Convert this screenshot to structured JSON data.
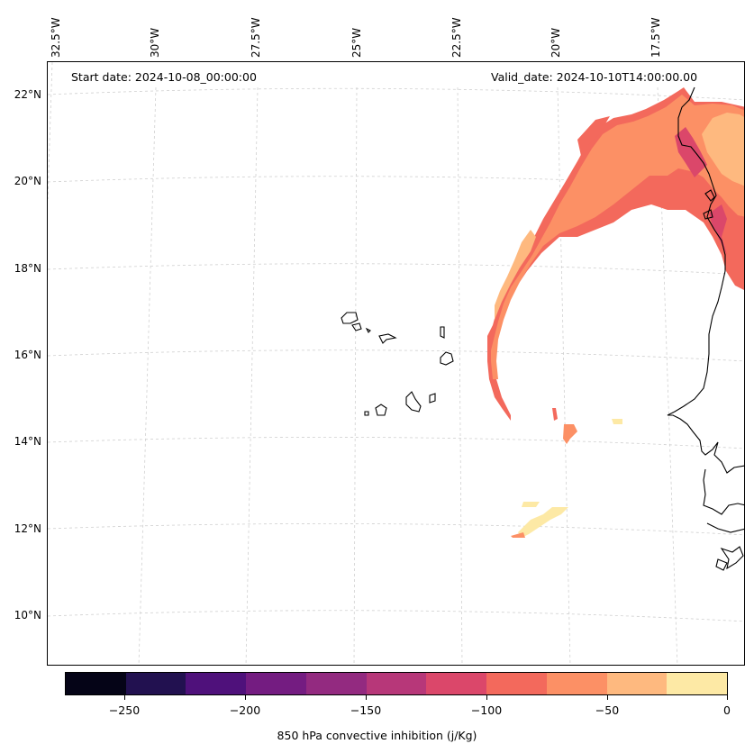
{
  "map": {
    "start_date": "Start date: 2024-10-08_00:00:00",
    "valid_date": "Valid_date: 2024-10-10T14:00:00.00",
    "lon_labels": [
      "32.5°W",
      "30°W",
      "27.5°W",
      "25°W",
      "22.5°W",
      "20°W",
      "17.5°W"
    ],
    "lat_labels": [
      "22°N",
      "20°N",
      "18°N",
      "16°N",
      "14°N",
      "12°N",
      "10°N"
    ]
  },
  "colorbar": {
    "title": "850 hPa convective inhibition (j/Kg)",
    "tick_labels": [
      "−250",
      "−200",
      "−150",
      "−100",
      "−50",
      "0"
    ],
    "range": [
      -275,
      0
    ],
    "colors": [
      "#050417",
      "#221150",
      "#4f117b",
      "#741c81",
      "#932a80",
      "#b73779",
      "#db476a",
      "#f3695c",
      "#fc9065",
      "#feb97f",
      "#fde9a5"
    ]
  },
  "chart_data": {
    "type": "heatmap",
    "variable": "850 hPa convective inhibition",
    "units": "j/Kg",
    "value_range": [
      -275,
      0
    ],
    "levels": [
      -275,
      -250,
      -225,
      -200,
      -175,
      -150,
      -125,
      -100,
      -75,
      -50,
      -25,
      0
    ],
    "lon_range": [
      "33°W",
      "16°W"
    ],
    "lat_range": [
      "9°N",
      "23°N"
    ]
  }
}
